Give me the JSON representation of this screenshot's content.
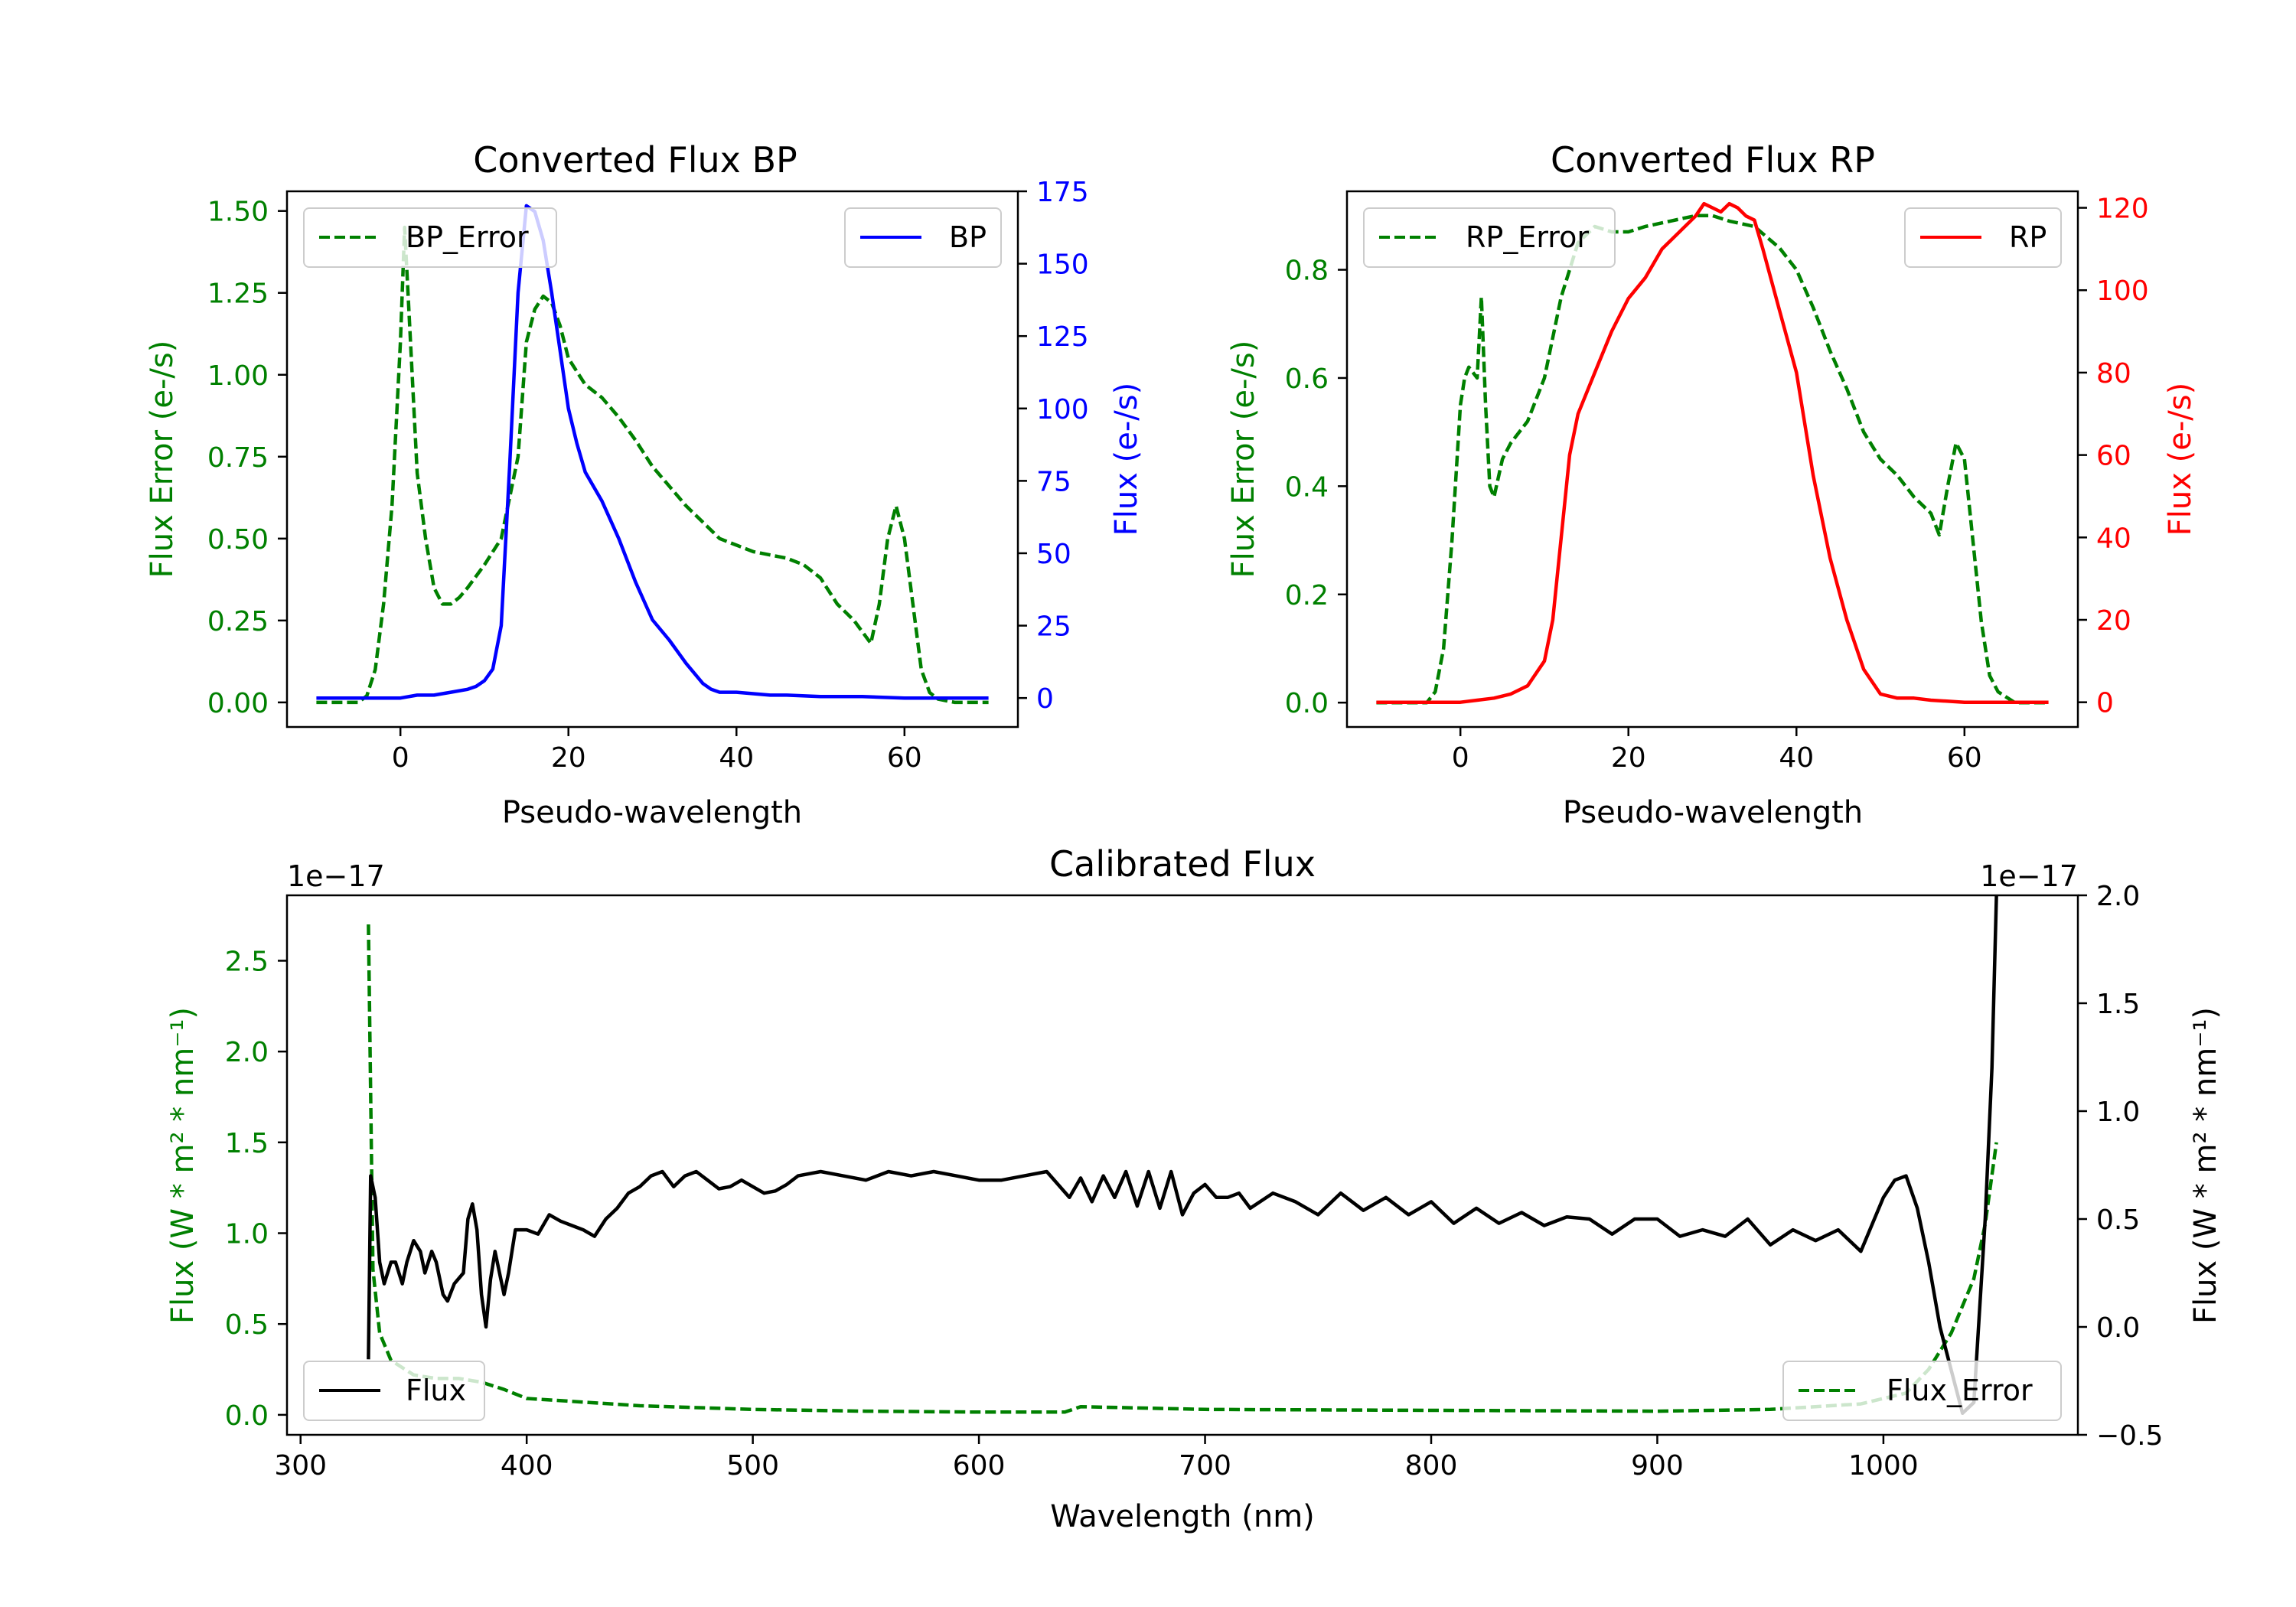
{
  "colors": {
    "error": "#008000",
    "bp": "#0000ff",
    "rp": "#ff0000",
    "flux": "#000000"
  },
  "chart_data": [
    {
      "id": "bp",
      "type": "line",
      "title": "Converted Flux BP",
      "xlabel": "Pseudo-wavelength",
      "ylabel_left": "Flux Error (e-/s)",
      "ylabel_right": "Flux (e-/s)",
      "xlim": [
        -13.5,
        73.5
      ],
      "ylim_left": [
        -0.075,
        1.56
      ],
      "ylim_right": [
        -10,
        175
      ],
      "xticks": [
        "0",
        "20",
        "40",
        "60"
      ],
      "xtick_values": [
        0,
        20,
        40,
        60
      ],
      "yticks_left": [
        "0.00",
        "0.25",
        "0.50",
        "0.75",
        "1.00",
        "1.25",
        "1.50"
      ],
      "ytick_values_left": [
        0,
        0.25,
        0.5,
        0.75,
        1.0,
        1.25,
        1.5
      ],
      "yticks_right": [
        "0",
        "25",
        "50",
        "75",
        "100",
        "125",
        "150",
        "175"
      ],
      "ytick_values_right": [
        0,
        25,
        50,
        75,
        100,
        125,
        150,
        175
      ],
      "legend_left": {
        "label": "BP_Error",
        "position": "upper left"
      },
      "legend_right": {
        "label": "BP",
        "position": "upper right"
      },
      "series": [
        {
          "name": "BP_Error",
          "axis": "left",
          "style": "dashed",
          "color_key": "error",
          "x": [
            -10,
            -5,
            -4,
            -3,
            -2,
            -1,
            0,
            0.5,
            1,
            2,
            3,
            4,
            5,
            6,
            7,
            8,
            10,
            12,
            14,
            15,
            16,
            17,
            18,
            19,
            20,
            22,
            24,
            26,
            28,
            30,
            32,
            34,
            36,
            38,
            40,
            42,
            44,
            46,
            48,
            50,
            52,
            54,
            56,
            57,
            58,
            59,
            60,
            61,
            62,
            63,
            64,
            66,
            70
          ],
          "y": [
            0,
            0,
            0.02,
            0.1,
            0.3,
            0.6,
            1.1,
            1.45,
            1.2,
            0.7,
            0.5,
            0.35,
            0.3,
            0.3,
            0.32,
            0.35,
            0.42,
            0.5,
            0.75,
            1.1,
            1.2,
            1.24,
            1.22,
            1.15,
            1.05,
            0.97,
            0.93,
            0.87,
            0.8,
            0.72,
            0.66,
            0.6,
            0.55,
            0.5,
            0.48,
            0.46,
            0.45,
            0.44,
            0.42,
            0.38,
            0.3,
            0.25,
            0.18,
            0.3,
            0.5,
            0.6,
            0.5,
            0.3,
            0.1,
            0.03,
            0.01,
            0,
            0
          ]
        },
        {
          "name": "BP",
          "axis": "right",
          "style": "solid",
          "color_key": "bp",
          "x": [
            -10,
            0,
            2,
            4,
            6,
            8,
            9,
            10,
            11,
            12,
            13,
            14,
            15,
            16,
            17,
            18,
            19,
            20,
            21,
            22,
            24,
            26,
            28,
            30,
            32,
            34,
            36,
            37,
            38,
            40,
            42,
            44,
            46,
            50,
            55,
            60,
            65,
            70
          ],
          "y": [
            0,
            0,
            1,
            1,
            2,
            3,
            4,
            6,
            10,
            25,
            80,
            140,
            170,
            168,
            158,
            140,
            120,
            100,
            88,
            78,
            68,
            55,
            40,
            27,
            20,
            12,
            5,
            3,
            2,
            2,
            1.5,
            1,
            1,
            0.5,
            0.5,
            0,
            0,
            0
          ]
        }
      ]
    },
    {
      "id": "rp",
      "type": "line",
      "title": "Converted Flux RP",
      "xlabel": "Pseudo-wavelength",
      "ylabel_left": "Flux Error (e-/s)",
      "ylabel_right": "Flux (e-/s)",
      "xlim": [
        -13.5,
        73.5
      ],
      "ylim_left": [
        -0.045,
        0.945
      ],
      "ylim_right": [
        -6,
        124
      ],
      "xticks": [
        "0",
        "20",
        "40",
        "60"
      ],
      "xtick_values": [
        0,
        20,
        40,
        60
      ],
      "yticks_left": [
        "0.0",
        "0.2",
        "0.4",
        "0.6",
        "0.8"
      ],
      "ytick_values_left": [
        0,
        0.2,
        0.4,
        0.6,
        0.8
      ],
      "yticks_right": [
        "0",
        "20",
        "40",
        "60",
        "80",
        "100",
        "120"
      ],
      "ytick_values_right": [
        0,
        20,
        40,
        60,
        80,
        100,
        120
      ],
      "legend_left": {
        "label": "RP_Error",
        "position": "upper left"
      },
      "legend_right": {
        "label": "RP",
        "position": "upper right"
      },
      "series": [
        {
          "name": "RP_Error",
          "axis": "left",
          "style": "dashed",
          "color_key": "error",
          "x": [
            -10,
            -4,
            -3,
            -2,
            -1,
            0,
            0.5,
            1,
            2,
            2.5,
            3,
            3.5,
            4,
            5,
            6,
            8,
            10,
            12,
            14,
            16,
            18,
            20,
            22,
            25,
            28,
            30,
            32,
            35,
            38,
            40,
            42,
            44,
            46,
            48,
            50,
            52,
            54,
            56,
            57,
            58,
            59,
            60,
            61,
            62,
            63,
            64,
            66,
            70
          ],
          "y": [
            0,
            0,
            0.02,
            0.1,
            0.3,
            0.55,
            0.6,
            0.62,
            0.6,
            0.75,
            0.55,
            0.4,
            0.38,
            0.45,
            0.48,
            0.52,
            0.6,
            0.75,
            0.85,
            0.88,
            0.87,
            0.87,
            0.88,
            0.89,
            0.9,
            0.9,
            0.89,
            0.88,
            0.84,
            0.8,
            0.73,
            0.65,
            0.58,
            0.5,
            0.45,
            0.42,
            0.38,
            0.35,
            0.31,
            0.4,
            0.48,
            0.45,
            0.3,
            0.15,
            0.05,
            0.02,
            0,
            0
          ]
        },
        {
          "name": "RP",
          "axis": "right",
          "style": "solid",
          "color_key": "rp",
          "x": [
            -10,
            0,
            2,
            4,
            6,
            8,
            10,
            11,
            12,
            13,
            14,
            16,
            18,
            20,
            22,
            24,
            26,
            28,
            29,
            30,
            31,
            32,
            33,
            34,
            35,
            36,
            38,
            40,
            42,
            44,
            46,
            48,
            50,
            52,
            54,
            56,
            60,
            65,
            70
          ],
          "y": [
            0,
            0,
            0.5,
            1,
            2,
            4,
            10,
            20,
            40,
            60,
            70,
            80,
            90,
            98,
            103,
            110,
            114,
            118,
            121,
            120,
            119,
            121,
            120,
            118,
            117,
            110,
            95,
            80,
            55,
            35,
            20,
            8,
            2,
            1,
            1,
            0.5,
            0,
            0,
            0
          ]
        }
      ]
    },
    {
      "id": "calibrated",
      "type": "line",
      "title": "Calibrated Flux",
      "xlabel": "Wavelength (nm)",
      "ylabel_left": "Flux (W * m² * nm⁻¹)",
      "ylabel_right": "Flux (W * m² * nm⁻¹)",
      "offset_left": "1e−17",
      "offset_right": "1e−17",
      "xlim": [
        294,
        1086
      ],
      "ylim_left": [
        -0.11,
        2.86
      ],
      "ylim_right": [
        -0.5,
        2.0
      ],
      "xticks": [
        "300",
        "400",
        "500",
        "600",
        "700",
        "800",
        "900",
        "1000"
      ],
      "xtick_values": [
        300,
        400,
        500,
        600,
        700,
        800,
        900,
        1000
      ],
      "yticks_left": [
        "0.0",
        "0.5",
        "1.0",
        "1.5",
        "2.0",
        "2.5"
      ],
      "ytick_values_left": [
        0,
        0.5,
        1.0,
        1.5,
        2.0,
        2.5
      ],
      "yticks_right": [
        "−0.5",
        "0.0",
        "0.5",
        "1.0",
        "1.5",
        "2.0"
      ],
      "ytick_values_right": [
        -0.5,
        0,
        0.5,
        1.0,
        1.5,
        2.0
      ],
      "legend_left": {
        "label": "Flux",
        "position": "lower left"
      },
      "legend_right": {
        "label": "Flux_Error",
        "position": "lower right"
      },
      "series": [
        {
          "name": "Flux_Error",
          "axis": "left",
          "style": "dashed",
          "color_key": "error",
          "x": [
            330,
            332,
            335,
            340,
            350,
            360,
            370,
            380,
            390,
            400,
            450,
            500,
            550,
            600,
            638,
            645,
            700,
            800,
            900,
            950,
            990,
            1010,
            1020,
            1030,
            1040,
            1045,
            1050
          ],
          "y": [
            2.7,
            0.8,
            0.45,
            0.3,
            0.22,
            0.2,
            0.2,
            0.18,
            0.14,
            0.09,
            0.05,
            0.03,
            0.02,
            0.015,
            0.015,
            0.045,
            0.03,
            0.025,
            0.02,
            0.03,
            0.06,
            0.12,
            0.25,
            0.45,
            0.75,
            1.05,
            1.5
          ]
        },
        {
          "name": "Flux",
          "axis": "right",
          "style": "solid",
          "color_key": "flux",
          "x": [
            330,
            331,
            333,
            335,
            337,
            340,
            342,
            345,
            347,
            350,
            353,
            355,
            358,
            360,
            363,
            365,
            368,
            372,
            374,
            376,
            378,
            380,
            382,
            384,
            386,
            388,
            390,
            392,
            395,
            400,
            405,
            410,
            415,
            420,
            425,
            430,
            435,
            440,
            445,
            450,
            455,
            460,
            465,
            470,
            475,
            480,
            485,
            490,
            495,
            500,
            505,
            510,
            515,
            520,
            530,
            540,
            550,
            560,
            570,
            580,
            590,
            600,
            610,
            620,
            630,
            640,
            645,
            650,
            655,
            660,
            665,
            670,
            675,
            680,
            685,
            690,
            695,
            700,
            705,
            710,
            715,
            720,
            730,
            740,
            750,
            760,
            770,
            780,
            790,
            800,
            810,
            820,
            830,
            840,
            850,
            860,
            870,
            880,
            890,
            900,
            910,
            920,
            930,
            940,
            950,
            960,
            970,
            980,
            990,
            1000,
            1005,
            1010,
            1015,
            1020,
            1025,
            1030,
            1035,
            1040,
            1045,
            1048,
            1050
          ],
          "y": [
            -0.15,
            0.7,
            0.6,
            0.3,
            0.2,
            0.3,
            0.3,
            0.2,
            0.3,
            0.4,
            0.35,
            0.25,
            0.35,
            0.3,
            0.15,
            0.12,
            0.2,
            0.25,
            0.5,
            0.57,
            0.45,
            0.15,
            0.0,
            0.22,
            0.35,
            0.25,
            0.15,
            0.25,
            0.45,
            0.45,
            0.43,
            0.52,
            0.49,
            0.47,
            0.45,
            0.42,
            0.5,
            0.55,
            0.62,
            0.65,
            0.7,
            0.72,
            0.65,
            0.7,
            0.72,
            0.68,
            0.64,
            0.65,
            0.68,
            0.65,
            0.62,
            0.63,
            0.66,
            0.7,
            0.72,
            0.7,
            0.68,
            0.72,
            0.7,
            0.72,
            0.7,
            0.68,
            0.68,
            0.7,
            0.72,
            0.6,
            0.69,
            0.58,
            0.7,
            0.6,
            0.72,
            0.56,
            0.72,
            0.55,
            0.72,
            0.52,
            0.62,
            0.66,
            0.6,
            0.6,
            0.62,
            0.55,
            0.62,
            0.58,
            0.52,
            0.62,
            0.54,
            0.6,
            0.52,
            0.58,
            0.48,
            0.55,
            0.48,
            0.53,
            0.47,
            0.51,
            0.5,
            0.43,
            0.5,
            0.5,
            0.42,
            0.45,
            0.42,
            0.5,
            0.38,
            0.45,
            0.4,
            0.45,
            0.35,
            0.6,
            0.68,
            0.7,
            0.55,
            0.3,
            0.0,
            -0.2,
            -0.4,
            -0.35,
            0.5,
            1.2,
            2.0
          ]
        }
      ]
    }
  ]
}
